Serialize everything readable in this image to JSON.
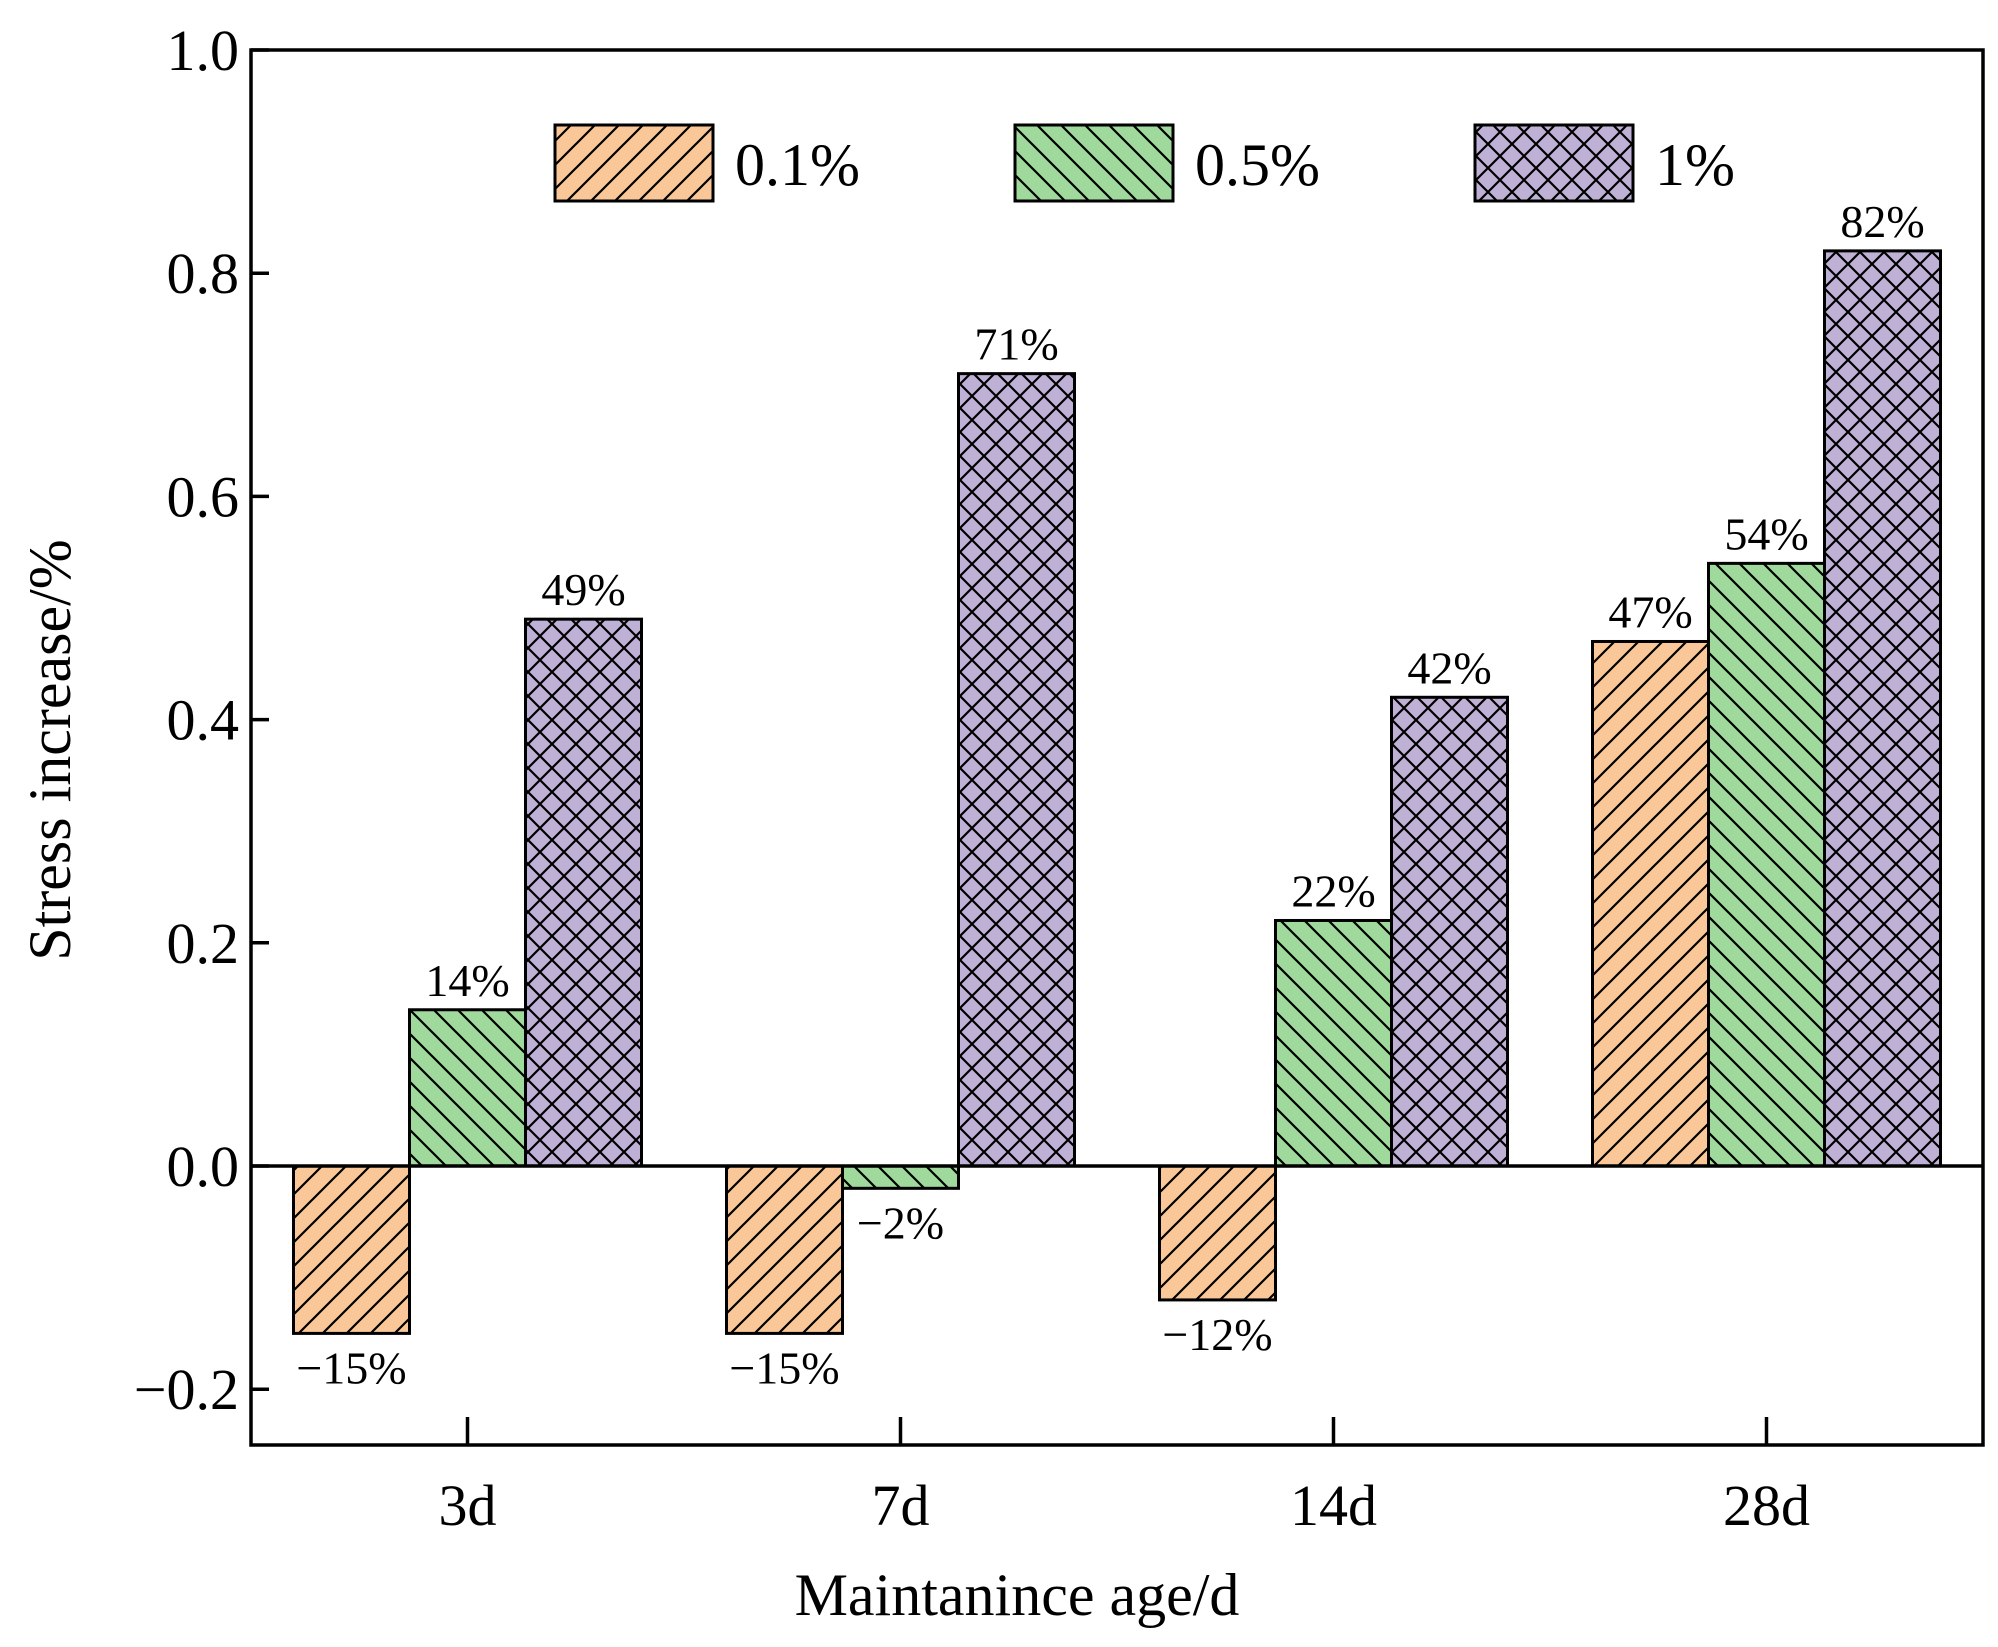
{
  "chart_data": {
    "type": "bar",
    "title": "",
    "xlabel": "Maintanince age/d",
    "ylabel": "Stress increase/%",
    "categories": [
      "3d",
      "7d",
      "14d",
      "28d"
    ],
    "ylim": [
      -0.25,
      1.0
    ],
    "yticks": [
      -0.2,
      0.0,
      0.2,
      0.4,
      0.6,
      0.8,
      1.0
    ],
    "ytick_labels": [
      "−0.2",
      "0.0",
      "0.2",
      "0.4",
      "0.6",
      "0.8",
      "1.0"
    ],
    "grid": false,
    "legend_position": "top",
    "series": [
      {
        "name": "0.1%",
        "color": "#fac898",
        "hatch": "diagonal-forward",
        "values": [
          -0.15,
          -0.15,
          -0.12,
          0.47
        ],
        "labels": [
          "−15%",
          "−15%",
          "−12%",
          "47%"
        ]
      },
      {
        "name": "0.5%",
        "color": "#a0d99c",
        "hatch": "diagonal-backward",
        "values": [
          0.14,
          -0.02,
          0.22,
          0.54
        ],
        "labels": [
          "14%",
          "−2%",
          "22%",
          "54%"
        ]
      },
      {
        "name": "1%",
        "color": "#bfb0d6",
        "hatch": "crosshatch",
        "values": [
          0.49,
          0.71,
          0.42,
          0.82
        ],
        "labels": [
          "49%",
          "71%",
          "42%",
          "82%"
        ]
      }
    ]
  }
}
